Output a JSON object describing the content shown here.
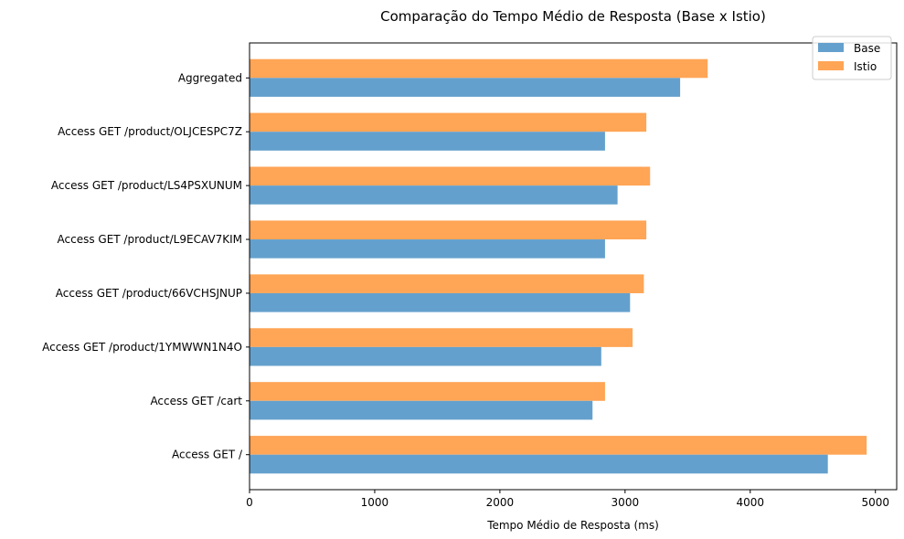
{
  "chart_data": {
    "type": "bar",
    "orientation": "horizontal",
    "title": "Comparação do Tempo Médio de Resposta (Base x Istio)",
    "xlabel": "Tempo Médio de Resposta (ms)",
    "ylabel": "",
    "xlim": [
      0,
      5170
    ],
    "x_ticks": [
      0,
      1000,
      2000,
      3000,
      4000,
      5000
    ],
    "categories": [
      "Aggregated",
      "Access GET /product/OLJCESPC7Z",
      "Access GET /product/LS4PSXUNUM",
      "Access GET /product/L9ECAV7KIM",
      "Access GET /product/66VCHSJNUP",
      "Access GET /product/1YMWWN1N4O",
      "Access GET /cart",
      "Access GET /"
    ],
    "series": [
      {
        "name": "Base",
        "color": "#64a0cd",
        "values": [
          3440,
          2840,
          2940,
          2840,
          3040,
          2810,
          2740,
          4620
        ]
      },
      {
        "name": "Istio",
        "color": "#ffa556",
        "values": [
          3660,
          3170,
          3200,
          3170,
          3150,
          3060,
          2840,
          4930
        ]
      }
    ],
    "grid": false,
    "legend_position": "top-right"
  }
}
